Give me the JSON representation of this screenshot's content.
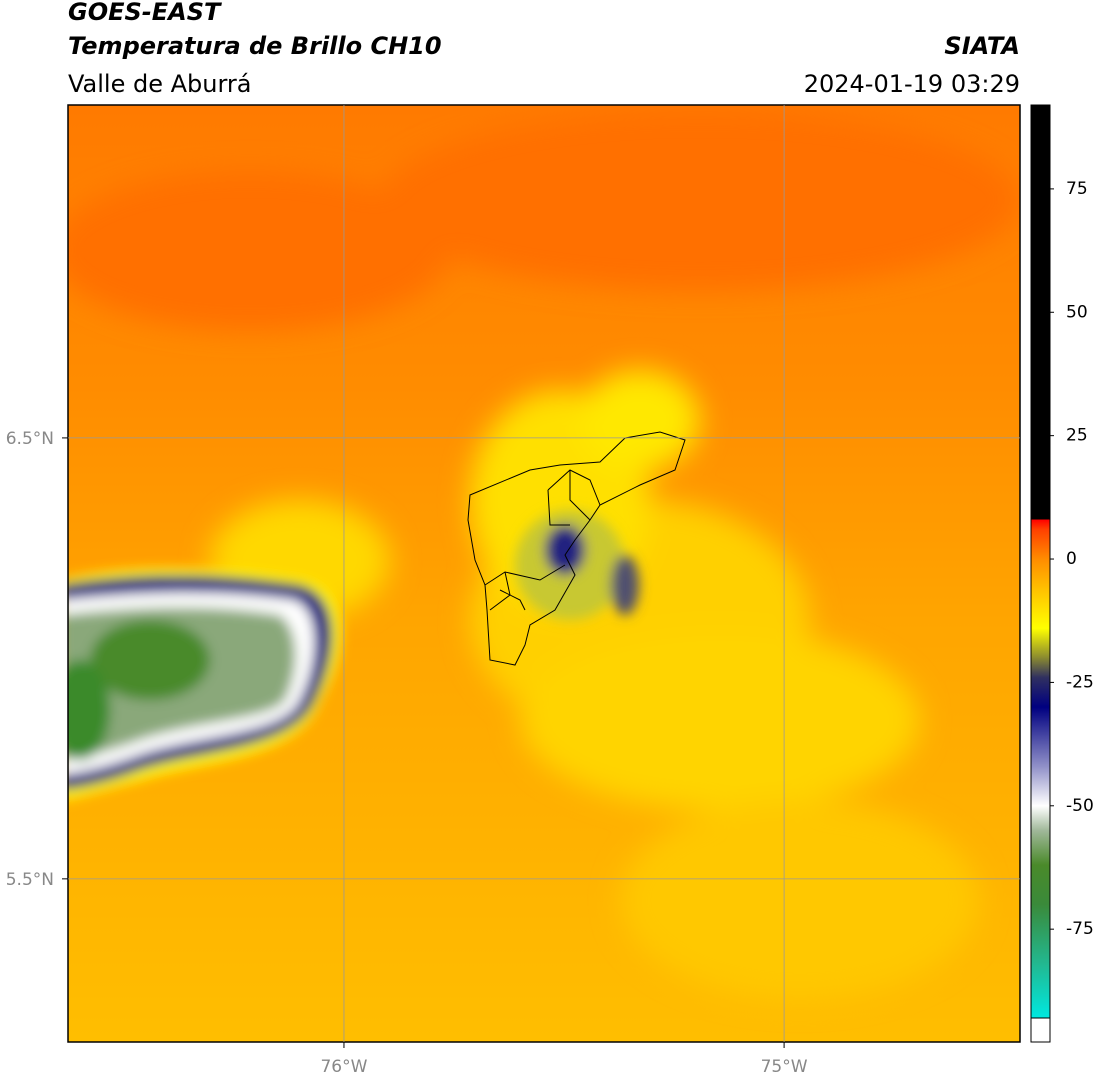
{
  "header": {
    "title": "GOES-EAST",
    "subtitle": "Temperatura de Brillo CH10",
    "region": "Valle de Aburrá",
    "source": "SIATA",
    "timestamp": "2024-01-19 03:29"
  },
  "map": {
    "xlim": [
      -76.627,
      -74.464
    ],
    "ylim": [
      5.13,
      7.255
    ],
    "xticks": [
      {
        "value": -76,
        "label": "76°W"
      },
      {
        "value": -75,
        "label": "75°W"
      }
    ],
    "yticks": [
      {
        "value": 6.5,
        "label": "6.5°N"
      },
      {
        "value": 5.5,
        "label": "5.5°N"
      }
    ],
    "grid": true
  },
  "colorbar": {
    "vlim": [
      -93,
      92
    ],
    "ticks": [
      75,
      50,
      25,
      0,
      -25,
      -50,
      -75
    ],
    "stops": [
      {
        "value": -93,
        "color": "#00e8e0"
      },
      {
        "value": -82,
        "color": "#22b890"
      },
      {
        "value": -70,
        "color": "#3a8a3a"
      },
      {
        "value": -62,
        "color": "#4a8a2a"
      },
      {
        "value": -55,
        "color": "#a0b89a"
      },
      {
        "value": -50,
        "color": "#ffffff"
      },
      {
        "value": -42,
        "color": "#9090c8"
      },
      {
        "value": -30,
        "color": "#000080"
      },
      {
        "value": -24,
        "color": "#303060"
      },
      {
        "value": -20,
        "color": "#8a8a30"
      },
      {
        "value": -14,
        "color": "#ffff00"
      },
      {
        "value": -6,
        "color": "#ffc000"
      },
      {
        "value": 0,
        "color": "#ff8c00"
      },
      {
        "value": 6,
        "color": "#ff4000"
      },
      {
        "value": 8,
        "color": "#ff0000"
      },
      {
        "value": 8.01,
        "color": "#000000"
      },
      {
        "value": 92,
        "color": "#000000"
      }
    ]
  }
}
